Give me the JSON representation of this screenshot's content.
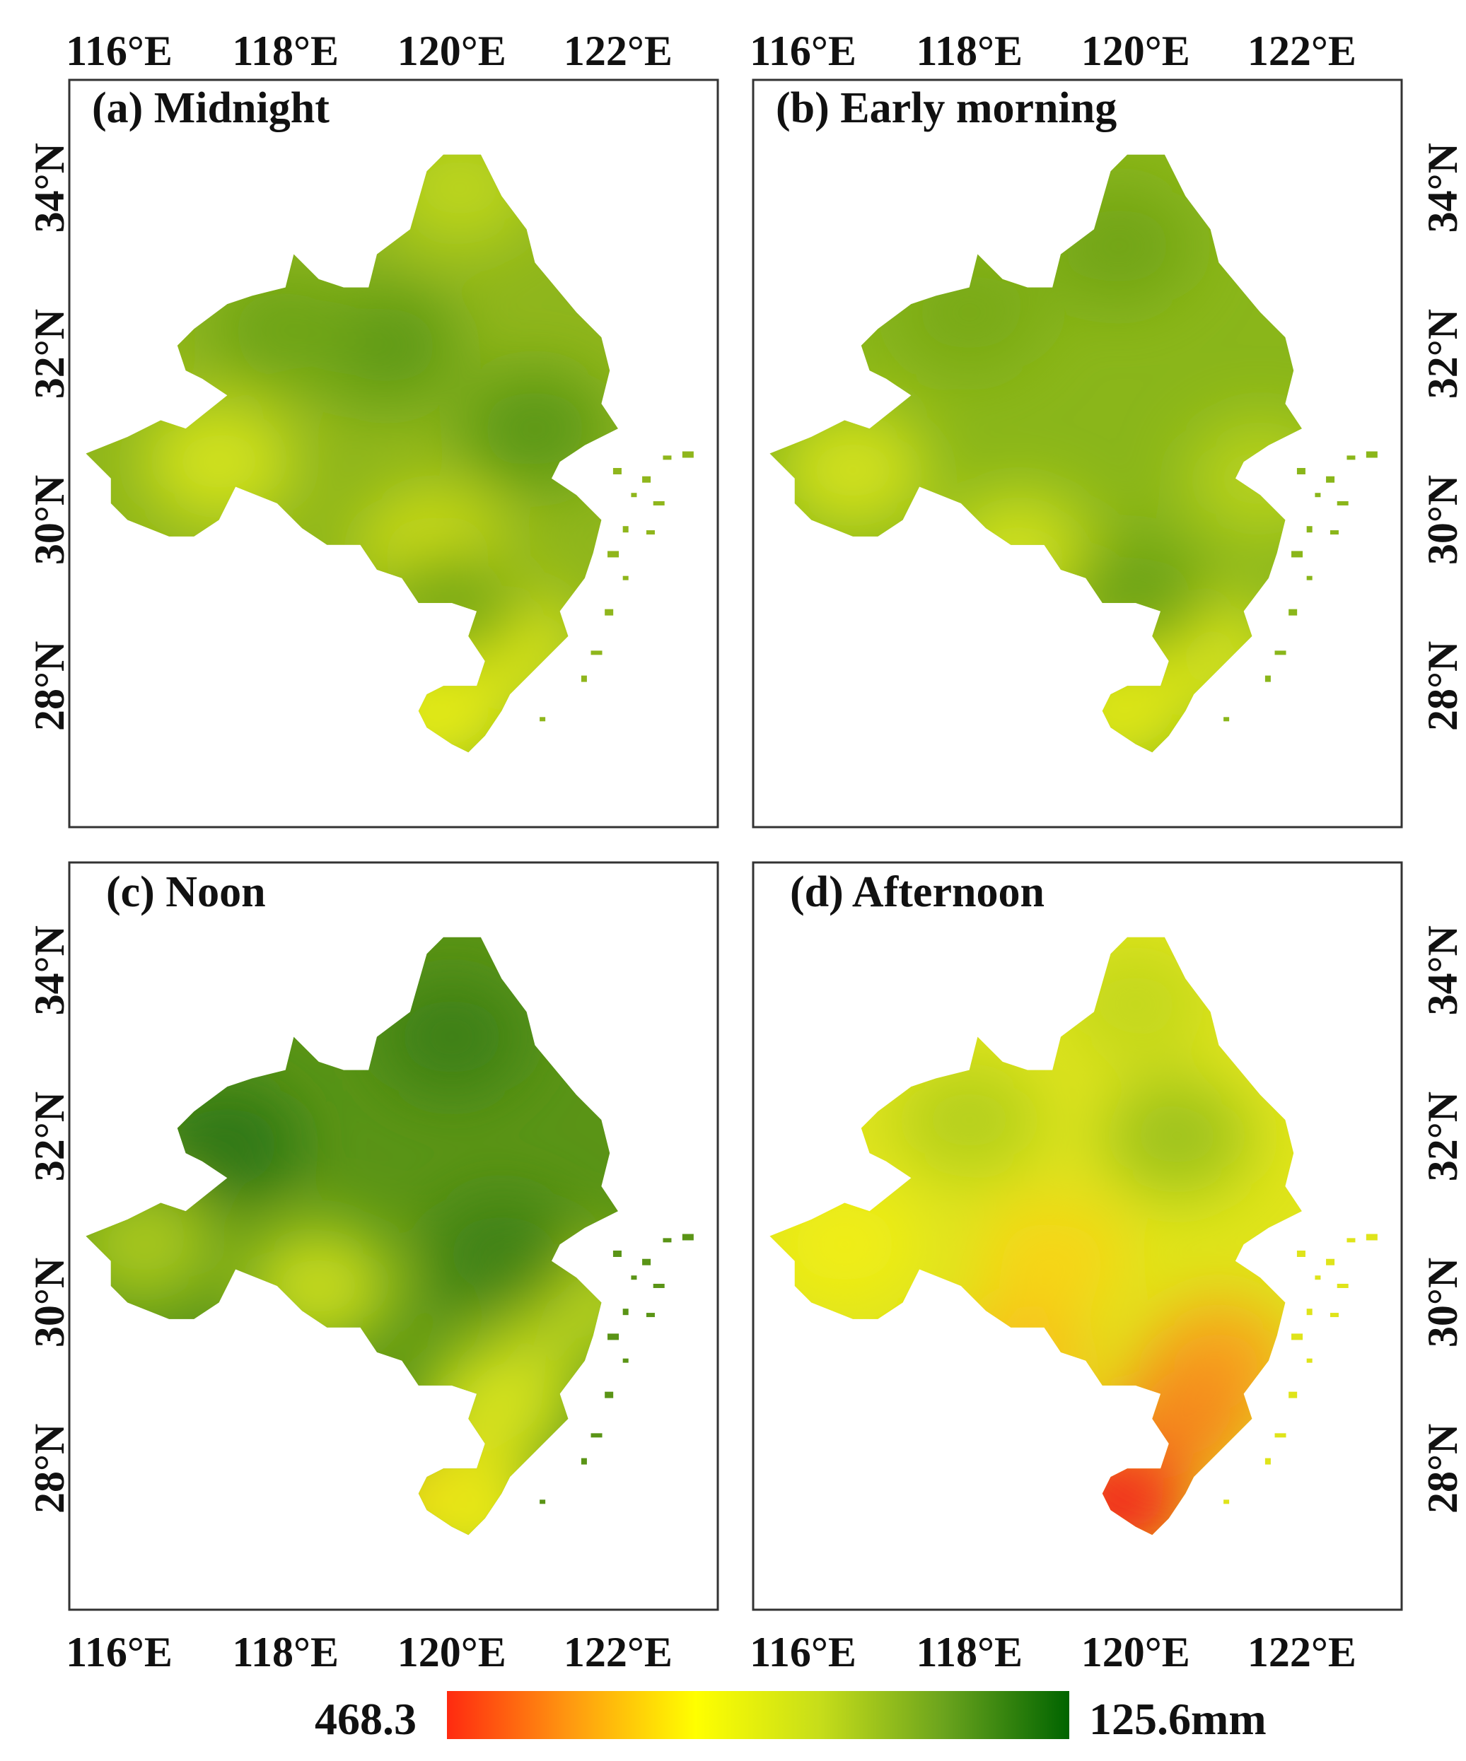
{
  "figure": {
    "panels": [
      {
        "id": "a",
        "title": "(a) Midnight",
        "base_color": "#8fb61c",
        "blobs": [
          {
            "lon": 117.2,
            "lat": 30.7,
            "color": "#d2e21a"
          },
          {
            "lon": 119.8,
            "lat": 29.6,
            "color": "#d8e418"
          },
          {
            "lon": 120.1,
            "lat": 34.0,
            "color": "#bcd51d"
          },
          {
            "lon": 120.6,
            "lat": 28.5,
            "color": "#dee81a"
          },
          {
            "lon": 119.8,
            "lat": 27.7,
            "color": "#e6ec14"
          },
          {
            "lon": 119.2,
            "lat": 32.1,
            "color": "#5e9a17"
          },
          {
            "lon": 121.0,
            "lat": 31.1,
            "color": "#5c9816"
          },
          {
            "lon": 118.0,
            "lat": 32.3,
            "color": "#6ea418"
          },
          {
            "lon": 120.0,
            "lat": 29.0,
            "color": "#7aaa18"
          }
        ]
      },
      {
        "id": "b",
        "title": "(b) Early morning",
        "base_color": "#8ab61a",
        "blobs": [
          {
            "lon": 116.6,
            "lat": 30.6,
            "color": "#d2e11c"
          },
          {
            "lon": 118.6,
            "lat": 29.6,
            "color": "#cfe01c"
          },
          {
            "lon": 120.8,
            "lat": 28.4,
            "color": "#d6e31a"
          },
          {
            "lon": 119.8,
            "lat": 27.7,
            "color": "#dfe718"
          },
          {
            "lon": 121.5,
            "lat": 30.5,
            "color": "#b5d11d"
          },
          {
            "lon": 120.0,
            "lat": 29.1,
            "color": "#6ea418"
          },
          {
            "lon": 119.8,
            "lat": 33.3,
            "color": "#72a517"
          },
          {
            "lon": 118.0,
            "lat": 32.5,
            "color": "#79aa19"
          }
        ]
      },
      {
        "id": "c",
        "title": "(c) Noon",
        "base_color": "#5a9416",
        "blobs": [
          {
            "lon": 116.3,
            "lat": 30.7,
            "color": "#a8c81b"
          },
          {
            "lon": 118.4,
            "lat": 30.2,
            "color": "#c6da1b"
          },
          {
            "lon": 120.6,
            "lat": 28.8,
            "color": "#d4e21a"
          },
          {
            "lon": 119.8,
            "lat": 27.6,
            "color": "#f6d216"
          },
          {
            "lon": 120.3,
            "lat": 27.4,
            "color": "#e8e818"
          },
          {
            "lon": 121.5,
            "lat": 30.0,
            "color": "#b8d31c"
          },
          {
            "lon": 117.3,
            "lat": 31.9,
            "color": "#2f7713"
          },
          {
            "lon": 120.0,
            "lat": 33.2,
            "color": "#3c8014"
          },
          {
            "lon": 120.6,
            "lat": 30.6,
            "color": "#3f8214"
          }
        ]
      },
      {
        "id": "d",
        "title": "(d) Afternoon",
        "base_color": "#dfe41a",
        "blobs": [
          {
            "lon": 118.0,
            "lat": 32.2,
            "color": "#b6d01e"
          },
          {
            "lon": 120.5,
            "lat": 32.0,
            "color": "#9fc31c"
          },
          {
            "lon": 120.0,
            "lat": 33.6,
            "color": "#c4d81e"
          },
          {
            "lon": 116.5,
            "lat": 30.7,
            "color": "#f0ee12"
          },
          {
            "lon": 119.0,
            "lat": 30.5,
            "color": "#f6d618"
          },
          {
            "lon": 121.0,
            "lat": 29.3,
            "color": "#f7a51d"
          },
          {
            "lon": 120.6,
            "lat": 28.6,
            "color": "#f58a1f"
          },
          {
            "lon": 119.8,
            "lat": 27.6,
            "color": "#f22a1a"
          },
          {
            "lon": 118.6,
            "lat": 29.3,
            "color": "#f7c21a"
          }
        ]
      }
    ],
    "x_ticks": [
      "116°E",
      "118°E",
      "120°E",
      "122°E"
    ],
    "y_ticks": [
      "28°N",
      "30°N",
      "32°N",
      "34°N"
    ],
    "legend": {
      "left_label": "468.3",
      "right_label": "125.6mm",
      "colors": [
        "#ff2a10",
        "#ff9a10",
        "#ffff00",
        "#c6dd1a",
        "#6aa31d",
        "#006400"
      ]
    },
    "map_data": {
      "lon_range": [
        115.4,
        123.2
      ],
      "lat_range": [
        26.3,
        35.3
      ],
      "x_tick_values": [
        116,
        118,
        120,
        122
      ],
      "y_tick_values": [
        28,
        30,
        32,
        34
      ],
      "region_outline": [
        [
          119.1,
          33.2
        ],
        [
          119.5,
          33.5
        ],
        [
          119.7,
          34.2
        ],
        [
          119.9,
          34.4
        ],
        [
          120.35,
          34.4
        ],
        [
          120.6,
          33.9
        ],
        [
          120.9,
          33.5
        ],
        [
          121.0,
          33.1
        ],
        [
          121.5,
          32.5
        ],
        [
          121.8,
          32.2
        ],
        [
          121.9,
          31.8
        ],
        [
          121.8,
          31.4
        ],
        [
          122.0,
          31.1
        ],
        [
          121.6,
          30.9
        ],
        [
          121.3,
          30.7
        ],
        [
          121.2,
          30.5
        ],
        [
          121.5,
          30.3
        ],
        [
          121.8,
          30.0
        ],
        [
          121.7,
          29.6
        ],
        [
          121.6,
          29.3
        ],
        [
          121.3,
          28.9
        ],
        [
          121.4,
          28.6
        ],
        [
          121.0,
          28.2
        ],
        [
          120.7,
          27.9
        ],
        [
          120.6,
          27.7
        ],
        [
          120.4,
          27.4
        ],
        [
          120.2,
          27.2
        ],
        [
          120.0,
          27.3
        ],
        [
          119.7,
          27.5
        ],
        [
          119.6,
          27.7
        ],
        [
          119.7,
          27.9
        ],
        [
          119.9,
          28.0
        ],
        [
          120.3,
          28.0
        ],
        [
          120.4,
          28.3
        ],
        [
          120.2,
          28.6
        ],
        [
          120.3,
          28.9
        ],
        [
          120.0,
          29.0
        ],
        [
          119.6,
          29.0
        ],
        [
          119.4,
          29.3
        ],
        [
          119.1,
          29.4
        ],
        [
          118.9,
          29.7
        ],
        [
          118.5,
          29.7
        ],
        [
          118.2,
          29.9
        ],
        [
          117.9,
          30.2
        ],
        [
          117.4,
          30.4
        ],
        [
          117.2,
          30.0
        ],
        [
          116.9,
          29.8
        ],
        [
          116.6,
          29.8
        ],
        [
          116.1,
          30.0
        ],
        [
          115.9,
          30.2
        ],
        [
          115.9,
          30.5
        ],
        [
          115.6,
          30.8
        ],
        [
          116.1,
          31.0
        ],
        [
          116.5,
          31.2
        ],
        [
          116.8,
          31.1
        ],
        [
          117.3,
          31.5
        ],
        [
          117.0,
          31.7
        ],
        [
          116.8,
          31.8
        ],
        [
          116.7,
          32.1
        ],
        [
          116.9,
          32.3
        ],
        [
          117.3,
          32.6
        ],
        [
          117.6,
          32.7
        ],
        [
          118.0,
          32.8
        ],
        [
          118.1,
          33.2
        ],
        [
          118.4,
          32.9
        ],
        [
          118.7,
          32.8
        ],
        [
          119.0,
          32.8
        ]
      ],
      "islands": [
        [
          122.2,
          30.3
        ],
        [
          122.35,
          30.5
        ],
        [
          122.5,
          30.2
        ],
        [
          122.1,
          29.9
        ],
        [
          122.4,
          29.85
        ],
        [
          121.95,
          29.6
        ],
        [
          122.1,
          29.3
        ],
        [
          121.9,
          28.9
        ],
        [
          121.75,
          28.4
        ],
        [
          121.6,
          28.1
        ],
        [
          122.6,
          30.75
        ],
        [
          122.85,
          30.8
        ],
        [
          121.1,
          27.6
        ],
        [
          122.0,
          30.6
        ]
      ]
    }
  }
}
